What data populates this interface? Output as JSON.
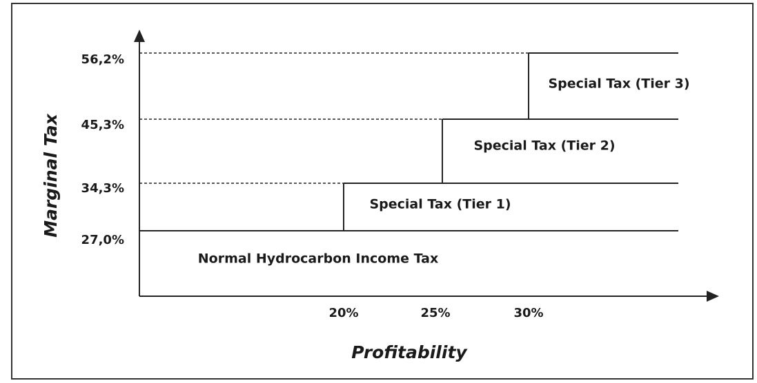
{
  "y_axis": {
    "title": "Marginal Tax",
    "labels": [
      "56,2%",
      "45,3%",
      "34,3%",
      "27,0%"
    ]
  },
  "x_axis": {
    "title": "Profitability",
    "labels": [
      "20%",
      "25%",
      "30%"
    ]
  },
  "regions": [
    "Special Tax (Tier 3)",
    "Special Tax (Tier 2)",
    "Special Tax (Tier 1)",
    "Normal Hydrocarbon Income Tax"
  ]
}
